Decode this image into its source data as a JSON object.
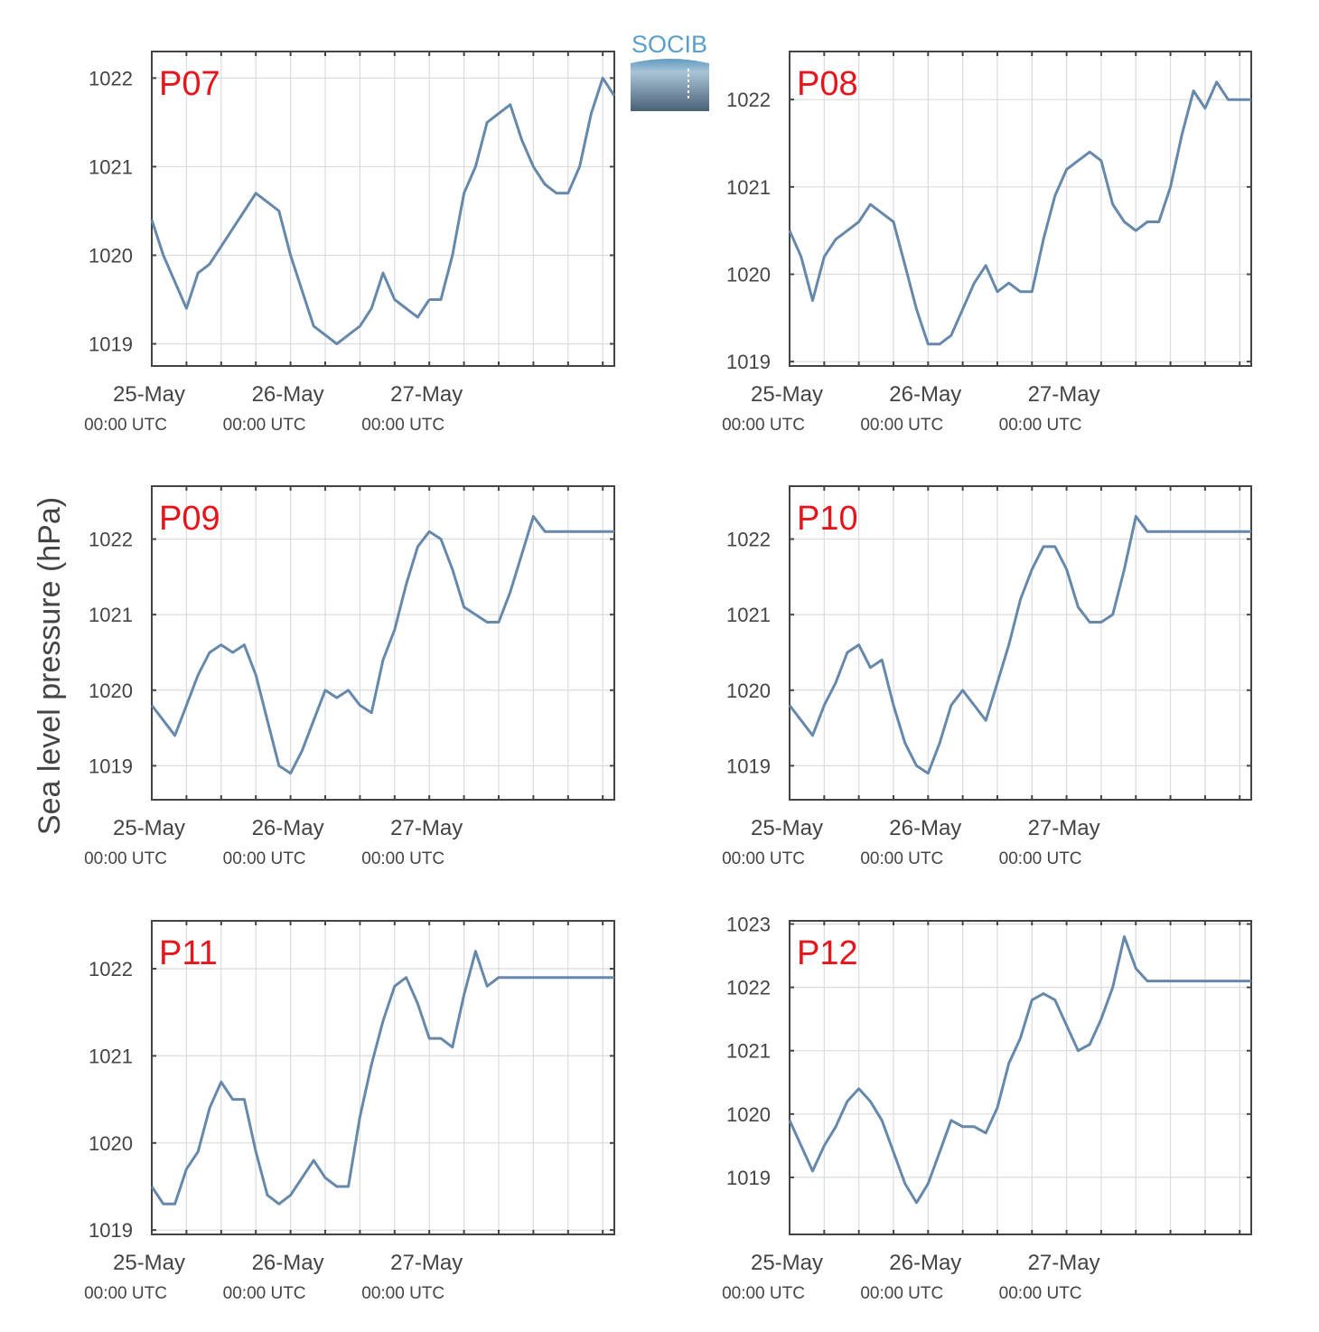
{
  "figure": {
    "ylabel": "Sea level pressure (hPa)",
    "logo_text": "SOCIB",
    "series_color": "#6688aa",
    "panel_label_color": "#e8141b",
    "grid": true
  },
  "chart_data": [
    {
      "type": "line",
      "label": "P07",
      "ylim": [
        1018.75,
        1022.3
      ],
      "yticks": [
        1019,
        1020,
        1021,
        1022
      ],
      "x": [
        0,
        2,
        4,
        6,
        8,
        10,
        12,
        14,
        16,
        18,
        20,
        22,
        24,
        26,
        28,
        30,
        32,
        34,
        36,
        38,
        40,
        42,
        44,
        46,
        48
      ],
      "y": [
        1020.4,
        1020.0,
        1019.7,
        1019.4,
        1019.8,
        1019.9,
        1020.1,
        1020.3,
        1020.5,
        1020.7,
        1020.6,
        1020.5,
        1020.0,
        1019.6,
        1019.2,
        1019.1,
        1019.0,
        1019.1,
        1019.2,
        1019.4,
        1019.8,
        1019.5,
        1019.4,
        1019.3,
        1019.5
      ],
      "x2": [
        48,
        50,
        52,
        54,
        56,
        58,
        60,
        62,
        64,
        66,
        68,
        70,
        72,
        74,
        76,
        78,
        80
      ],
      "y2": [
        1019.5,
        1019.5,
        1020.0,
        1020.7,
        1021.0,
        1021.5,
        1021.6,
        1021.7,
        1021.3,
        1021.0,
        1020.8,
        1020.7,
        1020.7,
        1021.0,
        1021.6,
        1022.0,
        1021.8
      ],
      "xticks": [
        "25-May",
        "26-May",
        "27-May"
      ],
      "xtick_sub": [
        "00:00 UTC",
        "00:00 UTC",
        "00:00 UTC"
      ]
    },
    {
      "type": "line",
      "label": "P08",
      "ylim": [
        1018.95,
        1022.55
      ],
      "yticks": [
        1019,
        1020,
        1021,
        1022
      ],
      "x": [
        0,
        2,
        4,
        6,
        8,
        10,
        12,
        14,
        16,
        18,
        20,
        22,
        24,
        26,
        28,
        30,
        32,
        34,
        36,
        38,
        40,
        42,
        44,
        46,
        48,
        50,
        52,
        54,
        56,
        58,
        60,
        62,
        64,
        66,
        68,
        70,
        72,
        74,
        76,
        78,
        80
      ],
      "y": [
        1020.5,
        1020.2,
        1019.7,
        1020.2,
        1020.4,
        1020.5,
        1020.6,
        1020.8,
        1020.7,
        1020.6,
        1020.1,
        1019.6,
        1019.2,
        1019.2,
        1019.3,
        1019.6,
        1019.9,
        1020.1,
        1019.8,
        1019.9,
        1019.8,
        1019.8,
        1020.4,
        1020.9,
        1021.2,
        1021.3,
        1021.4,
        1021.3,
        1020.8,
        1020.6,
        1020.5,
        1020.6,
        1020.6,
        1021.0,
        1021.6,
        1022.1,
        1021.9,
        1022.2,
        1022.0,
        1022.0,
        1022.0
      ],
      "xticks": [
        "25-May",
        "26-May",
        "27-May"
      ],
      "xtick_sub": [
        "00:00 UTC",
        "00:00 UTC",
        "00:00 UTC"
      ]
    },
    {
      "type": "line",
      "label": "P09",
      "ylim": [
        1018.55,
        1022.7
      ],
      "yticks": [
        1019,
        1020,
        1021,
        1022
      ],
      "x": [
        0,
        2,
        4,
        6,
        8,
        10,
        12,
        14,
        16,
        18,
        20,
        22,
        24,
        26,
        28,
        30,
        32,
        34,
        36,
        38,
        40,
        42,
        44,
        46,
        48,
        50,
        52,
        54,
        56,
        58,
        60,
        62,
        64,
        66,
        68,
        70,
        72,
        74,
        76,
        78,
        80
      ],
      "y": [
        1019.8,
        1019.6,
        1019.4,
        1019.8,
        1020.2,
        1020.5,
        1020.6,
        1020.5,
        1020.6,
        1020.2,
        1019.6,
        1019.0,
        1018.9,
        1019.2,
        1019.6,
        1020.0,
        1019.9,
        1020.0,
        1019.8,
        1019.7,
        1020.4,
        1020.8,
        1021.4,
        1021.9,
        1022.1,
        1022.0,
        1021.6,
        1021.1,
        1021.0,
        1020.9,
        1020.9,
        1021.3,
        1021.8,
        1022.3,
        1022.1,
        1022.1,
        1022.1,
        1022.1,
        1022.1,
        1022.1,
        1022.1
      ],
      "xticks": [
        "25-May",
        "26-May",
        "27-May"
      ],
      "xtick_sub": [
        "00:00 UTC",
        "00:00 UTC",
        "00:00 UTC"
      ]
    },
    {
      "type": "line",
      "label": "P10",
      "ylim": [
        1018.55,
        1022.7
      ],
      "yticks": [
        1019,
        1020,
        1021,
        1022
      ],
      "x": [
        0,
        2,
        4,
        6,
        8,
        10,
        12,
        14,
        16,
        18,
        20,
        22,
        24,
        26,
        28,
        30,
        32,
        34,
        36,
        38,
        40,
        42,
        44,
        46,
        48,
        50,
        52,
        54,
        56,
        58,
        60,
        62,
        64,
        66,
        68,
        70,
        72,
        74,
        76,
        78,
        80
      ],
      "y": [
        1019.8,
        1019.6,
        1019.4,
        1019.8,
        1020.1,
        1020.5,
        1020.6,
        1020.3,
        1020.4,
        1019.8,
        1019.3,
        1019.0,
        1018.9,
        1019.3,
        1019.8,
        1020.0,
        1019.8,
        1019.6,
        1020.1,
        1020.6,
        1021.2,
        1021.6,
        1021.9,
        1021.9,
        1021.6,
        1021.1,
        1020.9,
        1020.9,
        1021.0,
        1021.6,
        1022.3,
        1022.1,
        1022.1,
        1022.1,
        1022.1,
        1022.1,
        1022.1,
        1022.1,
        1022.1,
        1022.1,
        1022.1
      ],
      "xticks": [
        "25-May",
        "26-May",
        "27-May"
      ],
      "xtick_sub": [
        "00:00 UTC",
        "00:00 UTC",
        "00:00 UTC"
      ]
    },
    {
      "type": "line",
      "label": "P11",
      "ylim": [
        1018.95,
        1022.55
      ],
      "yticks": [
        1019,
        1020,
        1021,
        1022
      ],
      "x": [
        0,
        2,
        4,
        6,
        8,
        10,
        12,
        14,
        16,
        18,
        20,
        22,
        24,
        26,
        28,
        30,
        32,
        34,
        36,
        38,
        40,
        42,
        44,
        46,
        48,
        50,
        52,
        54,
        56,
        58,
        60,
        62,
        64,
        66,
        68,
        70,
        72,
        74,
        76,
        78,
        80
      ],
      "y": [
        1019.5,
        1019.3,
        1019.3,
        1019.7,
        1019.9,
        1020.4,
        1020.7,
        1020.5,
        1020.5,
        1019.9,
        1019.4,
        1019.3,
        1019.4,
        1019.6,
        1019.8,
        1019.6,
        1019.5,
        1019.5,
        1020.3,
        1020.9,
        1021.4,
        1021.8,
        1021.9,
        1021.6,
        1021.2,
        1021.2,
        1021.1,
        1021.7,
        1022.2,
        1021.8,
        1021.9,
        1021.9,
        1021.9,
        1021.9,
        1021.9,
        1021.9,
        1021.9,
        1021.9,
        1021.9,
        1021.9,
        1021.9
      ],
      "xticks": [
        "25-May",
        "26-May",
        "27-May"
      ],
      "xtick_sub": [
        "00:00 UTC",
        "00:00 UTC",
        "00:00 UTC"
      ]
    },
    {
      "type": "line",
      "label": "P12",
      "ylim": [
        1018.1,
        1023.05
      ],
      "yticks": [
        1019,
        1020,
        1021,
        1022,
        1023
      ],
      "x": [
        0,
        2,
        4,
        6,
        8,
        10,
        12,
        14,
        16,
        18,
        20,
        22,
        24,
        26,
        28,
        30,
        32,
        34,
        36,
        38,
        40,
        42,
        44,
        46,
        48,
        50,
        52,
        54,
        56,
        58,
        60,
        62,
        64,
        66,
        68,
        70,
        72,
        74,
        76,
        78,
        80
      ],
      "y": [
        1019.9,
        1019.5,
        1019.1,
        1019.5,
        1019.8,
        1020.2,
        1020.4,
        1020.2,
        1019.9,
        1019.4,
        1018.9,
        1018.6,
        1018.9,
        1019.4,
        1019.9,
        1019.8,
        1019.8,
        1019.7,
        1020.1,
        1020.8,
        1021.2,
        1021.8,
        1021.9,
        1021.8,
        1021.4,
        1021.0,
        1021.1,
        1021.5,
        1022.0,
        1022.8,
        1022.3,
        1022.1,
        1022.1,
        1022.1,
        1022.1,
        1022.1,
        1022.1,
        1022.1,
        1022.1,
        1022.1,
        1022.1
      ],
      "xticks": [
        "25-May",
        "26-May",
        "27-May"
      ],
      "xtick_sub": [
        "00:00 UTC",
        "00:00 UTC",
        "00:00 UTC"
      ]
    }
  ]
}
